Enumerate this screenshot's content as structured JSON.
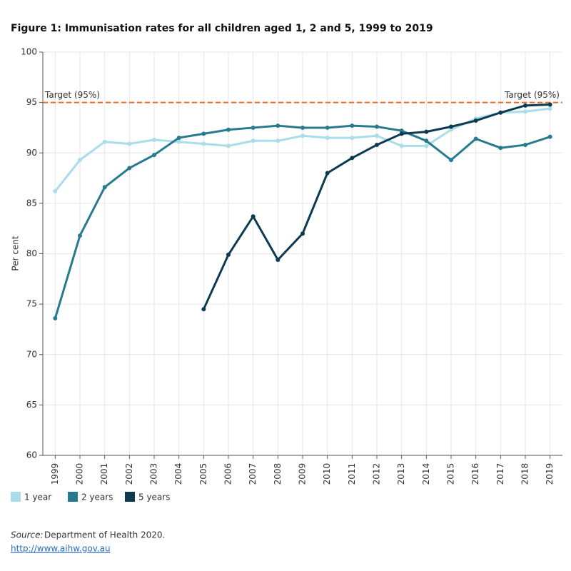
{
  "chart_data": {
    "type": "line",
    "title": "Figure 1: Immunisation rates for all children aged 1, 2 and 5, 1999 to 2019",
    "y_label": "Per cent",
    "x": [
      1999,
      2000,
      2001,
      2002,
      2003,
      2004,
      2005,
      2006,
      2007,
      2008,
      2009,
      2010,
      2011,
      2012,
      2013,
      2014,
      2015,
      2016,
      2017,
      2018,
      2019
    ],
    "xlim": [
      1998.5,
      2019.5
    ],
    "xticks": [
      1999,
      2000,
      2001,
      2002,
      2003,
      2004,
      2005,
      2006,
      2007,
      2008,
      2009,
      2010,
      2011,
      2012,
      2013,
      2014,
      2015,
      2016,
      2017,
      2018,
      2019
    ],
    "ylim": [
      60,
      100
    ],
    "yticks": [
      60,
      65,
      70,
      75,
      80,
      85,
      90,
      95,
      100
    ],
    "grid": true,
    "legend": "bottom-left",
    "target": {
      "value": 95,
      "label": "Target (95%)",
      "color": "#e8702a"
    },
    "series": [
      {
        "name": "1 year",
        "color": "#a8dde9",
        "values": [
          86.2,
          89.3,
          91.1,
          90.9,
          91.3,
          91.1,
          90.9,
          90.7,
          91.2,
          91.2,
          91.7,
          91.5,
          91.5,
          91.7,
          90.7,
          90.7,
          92.3,
          93.4,
          94.0,
          94.1,
          94.4
        ]
      },
      {
        "name": "2 years",
        "color": "#287a8f",
        "values": [
          73.6,
          81.8,
          86.6,
          88.5,
          89.8,
          91.5,
          91.9,
          92.3,
          92.5,
          92.7,
          92.5,
          92.5,
          92.7,
          92.6,
          92.2,
          91.2,
          89.3,
          91.4,
          90.5,
          90.8,
          91.6
        ]
      },
      {
        "name": "5 years",
        "color": "#0d3a50",
        "values": [
          null,
          null,
          null,
          null,
          null,
          null,
          74.5,
          79.9,
          83.7,
          79.4,
          82.0,
          88.0,
          89.5,
          90.8,
          91.9,
          92.1,
          92.6,
          93.2,
          94.0,
          94.7,
          94.8
        ]
      }
    ]
  },
  "source_label": "Source:",
  "source_text": "Department of Health 2020.",
  "link": "http://www.aihw.gov.au"
}
